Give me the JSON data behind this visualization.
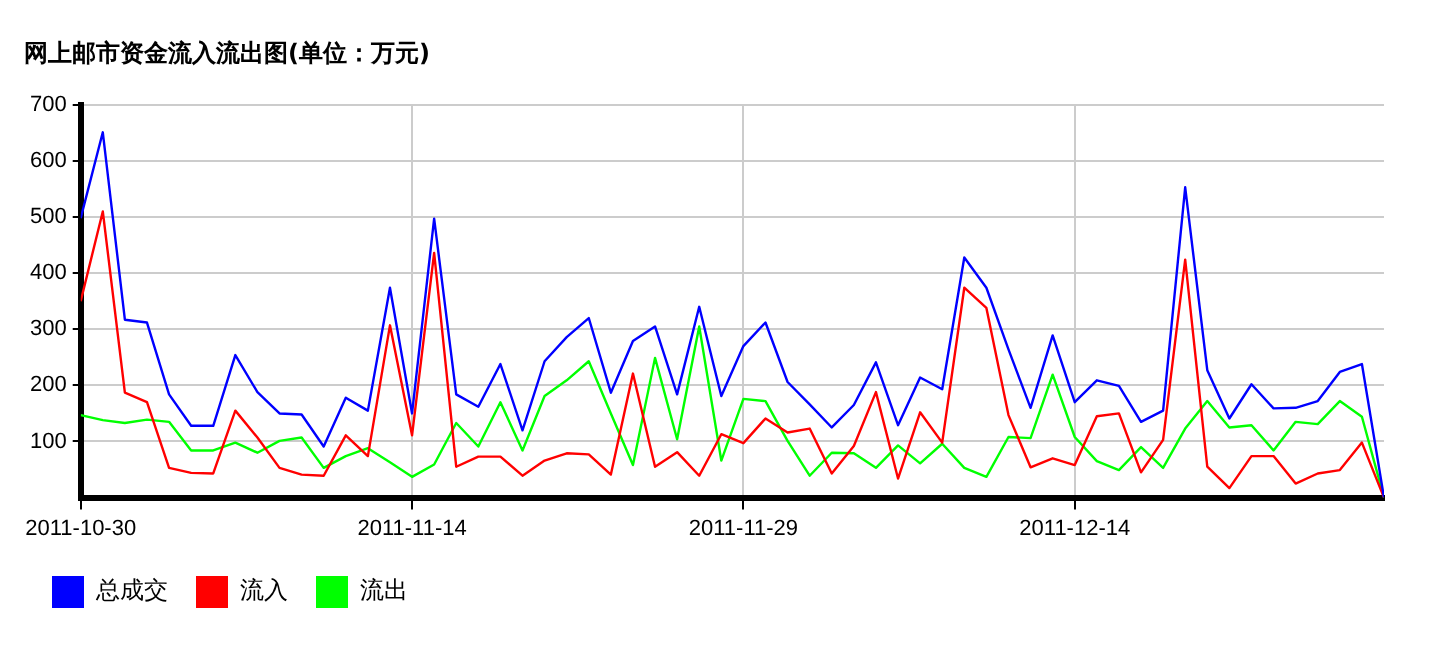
{
  "chart_data": {
    "type": "line",
    "title": "网上邮市资金流入流出图(单位：万元)",
    "x": [
      "2011-10-30",
      "2011-10-31",
      "2011-11-01",
      "2011-11-02",
      "2011-11-03",
      "2011-11-04",
      "2011-11-05",
      "2011-11-06",
      "2011-11-07",
      "2011-11-08",
      "2011-11-09",
      "2011-11-10",
      "2011-11-11",
      "2011-11-12",
      "2011-11-13",
      "2011-11-14",
      "2011-11-15",
      "2011-11-16",
      "2011-11-17",
      "2011-11-18",
      "2011-11-19",
      "2011-11-20",
      "2011-11-21",
      "2011-11-22",
      "2011-11-23",
      "2011-11-24",
      "2011-11-25",
      "2011-11-26",
      "2011-11-27",
      "2011-11-28",
      "2011-11-29",
      "2011-11-30",
      "2011-12-01",
      "2011-12-02",
      "2011-12-03",
      "2011-12-04",
      "2011-12-05",
      "2011-12-06",
      "2011-12-07",
      "2011-12-08",
      "2011-12-09",
      "2011-12-10",
      "2011-12-11",
      "2011-12-12",
      "2011-12-13",
      "2011-12-14",
      "2011-12-15",
      "2011-12-16",
      "2011-12-17",
      "2011-12-18",
      "2011-12-19",
      "2011-12-20",
      "2011-12-21",
      "2011-12-22",
      "2011-12-23",
      "2011-12-24",
      "2011-12-25",
      "2011-12-26",
      "2011-12-27",
      "2011-12-28"
    ],
    "series": [
      {
        "name": "总成交",
        "color": "#0000ff",
        "values": [
          498,
          651,
          317,
          312,
          184,
          128,
          128,
          254,
          188,
          150,
          148,
          91,
          178,
          155,
          374,
          150,
          497,
          184,
          162,
          238,
          120,
          243,
          286,
          320,
          187,
          279,
          305,
          184,
          340,
          181,
          270,
          312,
          206,
          166,
          125,
          165,
          241,
          129,
          214,
          193,
          428,
          374,
          264,
          160,
          289,
          170,
          209,
          199,
          135,
          155,
          553,
          227,
          141,
          202,
          159,
          160,
          172,
          224,
          238,
          0
        ]
      },
      {
        "name": "流入",
        "color": "#ff0000",
        "values": [
          350,
          510,
          187,
          170,
          53,
          44,
          43,
          155,
          107,
          53,
          41,
          39,
          111,
          74,
          307,
          111,
          436,
          55,
          73,
          73,
          39,
          66,
          79,
          77,
          41,
          221,
          55,
          81,
          39,
          113,
          97,
          141,
          116,
          123,
          43,
          92,
          188,
          34,
          152,
          98,
          374,
          338,
          147,
          54,
          70,
          58,
          145,
          150,
          45,
          103,
          424,
          55,
          17,
          74,
          74,
          25,
          43,
          49,
          98,
          0
        ]
      },
      {
        "name": "流出",
        "color": "#00ff00",
        "values": [
          147,
          138,
          133,
          139,
          135,
          84,
          84,
          98,
          80,
          101,
          107,
          53,
          74,
          88,
          63,
          37,
          59,
          133,
          91,
          170,
          84,
          181,
          209,
          243,
          150,
          58,
          249,
          104,
          305,
          66,
          176,
          172,
          101,
          39,
          80,
          79,
          53,
          93,
          61,
          96,
          53,
          37,
          108,
          106,
          219,
          108,
          65,
          49,
          90,
          53,
          123,
          172,
          125,
          129,
          84,
          135,
          131,
          172,
          144,
          0
        ]
      }
    ],
    "xlim": [
      "2011-10-30",
      "2011-12-28"
    ],
    "xticks": [
      "2011-10-30",
      "2011-11-14",
      "2011-11-29",
      "2011-12-14"
    ],
    "ylim": [
      0,
      700
    ],
    "yticks": [
      100,
      200,
      300,
      400,
      500,
      600,
      700
    ],
    "grid": true,
    "legend": "bottom",
    "marker": "none",
    "line_style": "solid"
  }
}
